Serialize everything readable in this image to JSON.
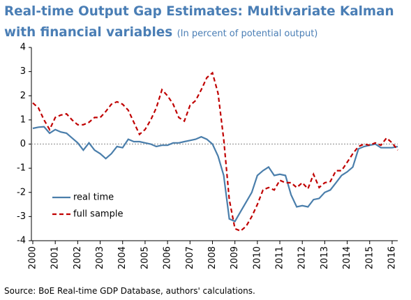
{
  "chart_data": {
    "type": "line",
    "title": "Real-time Output Gap Estimates: Multivariate Kalman with financial variables",
    "subtitle": "(In percent of potential output)",
    "source": "Source: BoE Real-time GDP Database, authors' calculations.",
    "x": [
      2000,
      2000.25,
      2000.5,
      2000.75,
      2001,
      2001.25,
      2001.5,
      2001.75,
      2002,
      2002.25,
      2002.5,
      2002.75,
      2003,
      2003.25,
      2003.5,
      2003.75,
      2004,
      2004.25,
      2004.5,
      2004.75,
      2005,
      2005.25,
      2005.5,
      2005.75,
      2006,
      2006.25,
      2006.5,
      2006.75,
      2007,
      2007.25,
      2007.5,
      2007.75,
      2008,
      2008.25,
      2008.5,
      2008.75,
      2009,
      2009.25,
      2009.5,
      2009.75,
      2010,
      2010.25,
      2010.5,
      2010.75,
      2011,
      2011.25,
      2011.5,
      2011.75,
      2012,
      2012.25,
      2012.5,
      2012.75,
      2013,
      2013.25,
      2013.5,
      2013.75,
      2014,
      2014.25,
      2014.5,
      2014.75,
      2015,
      2015.25,
      2015.5,
      2015.75,
      2016,
      2016.25
    ],
    "series": [
      {
        "name": "real time",
        "color": "#4a7eab",
        "dash": false,
        "values": [
          0.65,
          0.7,
          0.72,
          0.45,
          0.6,
          0.5,
          0.45,
          0.25,
          0.05,
          -0.25,
          0.05,
          -0.25,
          -0.4,
          -0.6,
          -0.4,
          -0.1,
          -0.15,
          0.2,
          0.1,
          0.1,
          0.05,
          0.0,
          -0.1,
          -0.05,
          -0.05,
          0.05,
          0.05,
          0.1,
          0.15,
          0.2,
          0.3,
          0.2,
          0.0,
          -0.5,
          -1.3,
          -3.1,
          -3.2,
          -2.8,
          -2.4,
          -2.0,
          -1.3,
          -1.1,
          -0.95,
          -1.3,
          -1.25,
          -1.3,
          -2.1,
          -2.6,
          -2.55,
          -2.6,
          -2.3,
          -2.25,
          -2.0,
          -1.9,
          -1.6,
          -1.3,
          -1.15,
          -0.95,
          -0.2,
          -0.1,
          -0.05,
          0.0,
          -0.15,
          -0.15,
          -0.15,
          -0.1
        ]
      },
      {
        "name": "full sample",
        "color": "#c00000",
        "dash": true,
        "values": [
          1.7,
          1.5,
          1.0,
          0.6,
          1.1,
          1.2,
          1.25,
          1.0,
          0.8,
          0.8,
          0.9,
          1.1,
          1.1,
          1.35,
          1.65,
          1.75,
          1.65,
          1.4,
          0.9,
          0.4,
          0.6,
          1.0,
          1.5,
          2.25,
          2.0,
          1.65,
          1.1,
          0.95,
          1.6,
          1.8,
          2.25,
          2.75,
          2.95,
          2.1,
          0.2,
          -2.3,
          -3.5,
          -3.6,
          -3.4,
          -3.0,
          -2.5,
          -1.9,
          -1.8,
          -1.9,
          -1.5,
          -1.6,
          -1.6,
          -1.8,
          -1.6,
          -1.85,
          -1.25,
          -1.8,
          -1.6,
          -1.55,
          -1.1,
          -1.1,
          -0.75,
          -0.4,
          -0.1,
          0.0,
          -0.05,
          0.05,
          -0.05,
          0.25,
          0.05,
          -0.25
        ]
      }
    ],
    "xlim": [
      2000,
      2016.25
    ],
    "xticks": [
      2000,
      2001,
      2002,
      2003,
      2004,
      2005,
      2006,
      2007,
      2008,
      2009,
      2010,
      2011,
      2012,
      2013,
      2014,
      2015,
      2016
    ],
    "ylim": [
      -4,
      4
    ],
    "yticks": [
      -4,
      -3,
      -2,
      -1,
      0,
      1,
      2,
      3,
      4
    ],
    "legend": "lower-left"
  }
}
